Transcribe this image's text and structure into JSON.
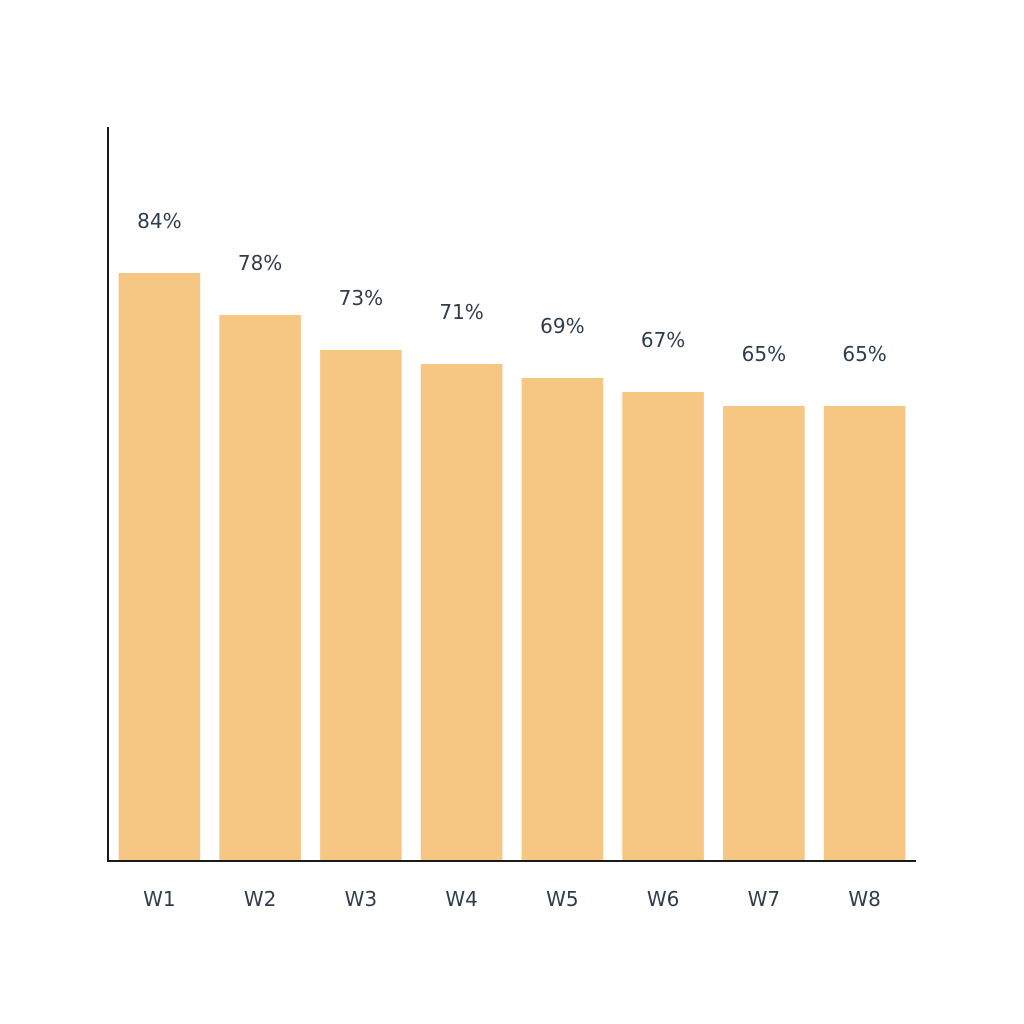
{
  "chart_data": {
    "type": "bar",
    "categories": [
      "W1",
      "W2",
      "W3",
      "W4",
      "W5",
      "W6",
      "W7",
      "W8"
    ],
    "values": [
      84,
      78,
      73,
      71,
      69,
      67,
      65,
      65
    ],
    "value_labels": [
      "84%",
      "78%",
      "73%",
      "71%",
      "69%",
      "67%",
      "65%",
      "65%"
    ],
    "title": "",
    "xlabel": "",
    "ylabel": "",
    "ylim": [
      0,
      105
    ],
    "grid": false,
    "legend": "none",
    "bar_color": "#f5c782",
    "text_color": "#2f3e4c",
    "axis_color": "#1a1a1a"
  }
}
